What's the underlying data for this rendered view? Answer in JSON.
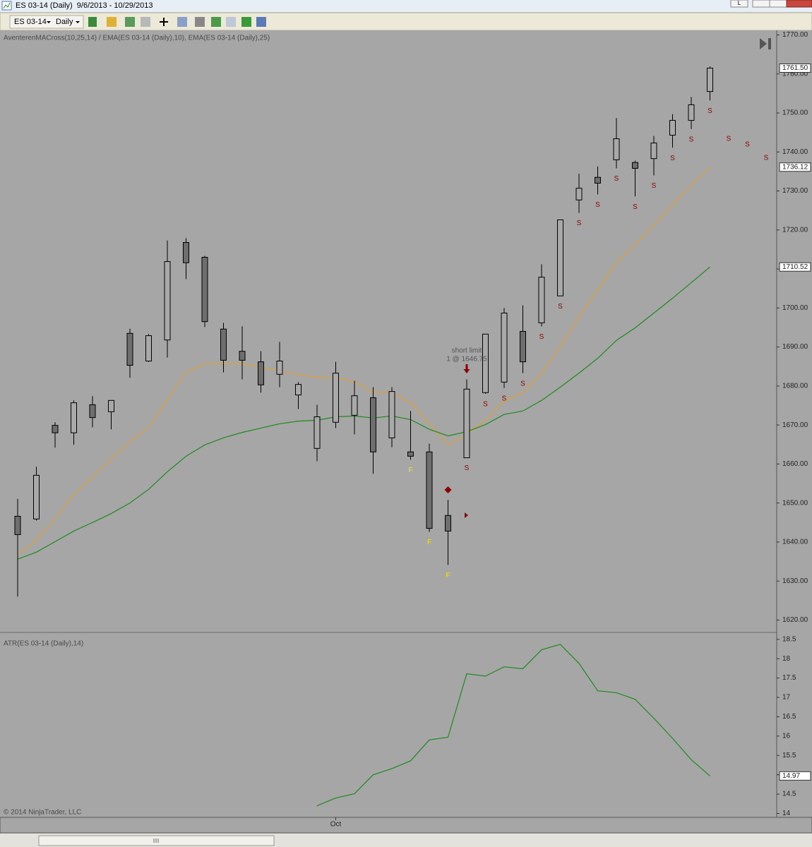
{
  "window": {
    "title": "ES 03-14 (Daily)  9/6/2013 - 10/29/2013",
    "language": "L",
    "toolbar": {
      "instrument": "ES 03-14",
      "period": "Daily"
    }
  },
  "copyright": "© 2014 NinjaTrader, LLC",
  "chart_data": [
    {
      "type": "candlestick",
      "label": "AventerenMACross(10,25,14) / EMA(ES 03-14 (Daily),10), EMA(ES 03-14 (Daily),25)",
      "categories": [
        null,
        null,
        null,
        null,
        null,
        null,
        null,
        null,
        null,
        null,
        null,
        null,
        null,
        null,
        null,
        null,
        null,
        "Oct",
        null,
        null,
        null,
        null,
        null,
        null,
        null,
        null,
        null,
        null,
        null,
        null,
        null,
        null,
        null,
        null,
        null,
        null,
        null,
        null
      ],
      "open": [
        1646.6,
        1645.9,
        1669.9,
        1668.0,
        1675.2,
        1673.4,
        1693.5,
        1686.4,
        1691.8,
        1716.8,
        1713.0,
        1694.6,
        1688.9,
        1686.2,
        1683.0,
        1677.7,
        1664.0,
        1670.7,
        1672.5,
        1677.0,
        1666.7,
        1663.1,
        1663.1,
        1646.8,
        1661.6,
        1678.3,
        1681.0,
        1694.0,
        1696.2,
        1703.1,
        1727.7,
        1733.5,
        1738.0,
        1737.3,
        1738.3,
        1744.3,
        1748.1,
        1755.5
      ],
      "high": [
        1651.1,
        1659.3,
        1670.7,
        1676.3,
        1677.4,
        1676.3,
        1694.7,
        1693.3,
        1717.3,
        1717.9,
        1713.4,
        1696.2,
        1695.3,
        1688.9,
        1691.3,
        1681.0,
        1675.2,
        1686.2,
        1681.3,
        1679.7,
        1679.7,
        1673.6,
        1665.2,
        1650.8,
        1681.7,
        1693.3,
        1700.0,
        1700.7,
        1711.2,
        1722.6,
        1734.4,
        1736.3,
        1748.7,
        1737.8,
        1744.1,
        1749.7,
        1754.1,
        1761.9
      ],
      "low": [
        1626.0,
        1645.5,
        1664.2,
        1664.9,
        1669.4,
        1668.9,
        1682.1,
        1686.2,
        1687.3,
        1707.4,
        1695.1,
        1683.5,
        1681.7,
        1678.3,
        1679.7,
        1674.1,
        1660.7,
        1669.2,
        1667.6,
        1657.5,
        1664.3,
        1661.1,
        1642.6,
        1634.1,
        1661.6,
        1678.0,
        1679.5,
        1683.3,
        1695.3,
        1703.1,
        1724.4,
        1729.1,
        1735.8,
        1728.6,
        1734.0,
        1741.1,
        1745.9,
        1753.2
      ],
      "close": [
        1641.9,
        1657.1,
        1668.0,
        1675.7,
        1671.9,
        1676.3,
        1685.3,
        1692.9,
        1711.9,
        1711.6,
        1696.5,
        1686.6,
        1686.6,
        1680.3,
        1686.4,
        1680.4,
        1672.1,
        1683.3,
        1677.5,
        1663.1,
        1678.6,
        1662.0,
        1643.5,
        1642.8,
        1679.2,
        1693.3,
        1698.7,
        1686.2,
        1707.9,
        1722.6,
        1730.7,
        1732.0,
        1743.4,
        1735.8,
        1742.3,
        1748.1,
        1752.1,
        1761.5
      ],
      "close_labels": [
        null,
        null,
        null,
        null,
        null,
        null,
        null,
        null,
        null,
        null,
        null,
        null,
        null,
        null,
        null,
        null,
        null,
        null,
        null,
        null,
        null,
        null,
        null,
        null,
        null,
        null,
        null,
        null,
        null,
        null,
        null,
        null,
        null,
        null,
        null,
        null,
        null,
        "1761.50"
      ],
      "up_color": "#a9a9a9",
      "down_color": "#6e6e6e",
      "lines": [
        {
          "color": "#e0a030",
          "values": [
            1636.8,
            1640.5,
            1645.9,
            1652.2,
            1656.7,
            1661.3,
            1665.8,
            1669.4,
            1676.6,
            1683.5,
            1685.7,
            1685.7,
            1685.7,
            1684.8,
            1683.9,
            1683.0,
            1682.1,
            1682.1,
            1681.2,
            1678.4,
            1678.4,
            1675.7,
            1670.3,
            1664.9,
            1667.6,
            1671.2,
            1676.1,
            1678.4,
            1683.3,
            1690.2,
            1697.8,
            1704.7,
            1711.6,
            1716.4,
            1721.3,
            1726.4,
            1731.5,
            1736.12
          ]
        },
        {
          "color": "#1e8a1e",
          "values": [
            1635.6,
            1637.4,
            1640.1,
            1642.8,
            1645.0,
            1647.3,
            1650.0,
            1653.5,
            1658.0,
            1662.0,
            1664.9,
            1666.7,
            1668.1,
            1669.2,
            1670.3,
            1671.0,
            1671.2,
            1672.1,
            1672.3,
            1671.8,
            1672.3,
            1671.4,
            1668.9,
            1667.2,
            1668.3,
            1670.1,
            1672.7,
            1673.6,
            1676.3,
            1679.7,
            1683.3,
            1687.1,
            1691.7,
            1694.9,
            1698.7,
            1702.5,
            1706.5,
            1710.52
          ]
        }
      ],
      "signals": [
        null,
        null,
        null,
        null,
        null,
        null,
        null,
        null,
        null,
        null,
        null,
        null,
        null,
        null,
        null,
        null,
        null,
        null,
        null,
        null,
        null,
        "F",
        "F",
        "F",
        "S",
        "S",
        "S",
        "S",
        "S",
        "S",
        "S",
        "S",
        "S",
        "S",
        "S",
        "S",
        "S",
        "S"
      ],
      "future_signals": [
        "S",
        "S",
        "S"
      ],
      "signal_colors": {
        "S": "#8b0000",
        "F": "#ffe000"
      },
      "annotation": {
        "line1": "short limit",
        "line2": "1 @ 1646.75"
      },
      "ylim": [
        1617,
        1771
      ],
      "yticks": [
        {
          "value": 1620,
          "label": "1620.00"
        },
        {
          "value": 1630,
          "label": "1630.00"
        },
        {
          "value": 1640,
          "label": "1640.00"
        },
        {
          "value": 1650,
          "label": "1650.00"
        },
        {
          "value": 1660,
          "label": "1660.00"
        },
        {
          "value": 1670,
          "label": "1670.00"
        },
        {
          "value": 1680,
          "label": "1680.00"
        },
        {
          "value": 1690,
          "label": "1690.00"
        },
        {
          "value": 1700,
          "label": "1700.00"
        },
        {
          "value": 1710,
          "label": "1710.00"
        },
        {
          "value": 1720,
          "label": "1720.00"
        },
        {
          "value": 1730,
          "label": "1730.00"
        },
        {
          "value": 1740,
          "label": "1740.00"
        },
        {
          "value": 1750,
          "label": "1750.00"
        },
        {
          "value": 1760,
          "label": "1760.00"
        },
        {
          "value": 1770,
          "label": "1770.00"
        }
      ],
      "grid": false
    },
    {
      "type": "line",
      "label": "ATR(ES 03-14 (Daily),14)",
      "color": "#1e8a1e",
      "values": [
        null,
        null,
        null,
        null,
        null,
        null,
        null,
        null,
        null,
        null,
        null,
        null,
        null,
        null,
        null,
        null,
        14.2,
        14.4,
        14.51,
        15.0,
        15.16,
        15.36,
        15.9,
        15.97,
        17.61,
        17.55,
        17.79,
        17.74,
        18.23,
        18.37,
        17.88,
        17.17,
        17.12,
        16.95,
        16.46,
        15.94,
        15.39,
        14.97
      ],
      "ylim": [
        13.9,
        18.66
      ],
      "yticks": [
        14,
        14.5,
        15,
        15.5,
        16,
        16.5,
        17,
        17.5,
        18,
        18.5
      ],
      "grid": false
    }
  ]
}
